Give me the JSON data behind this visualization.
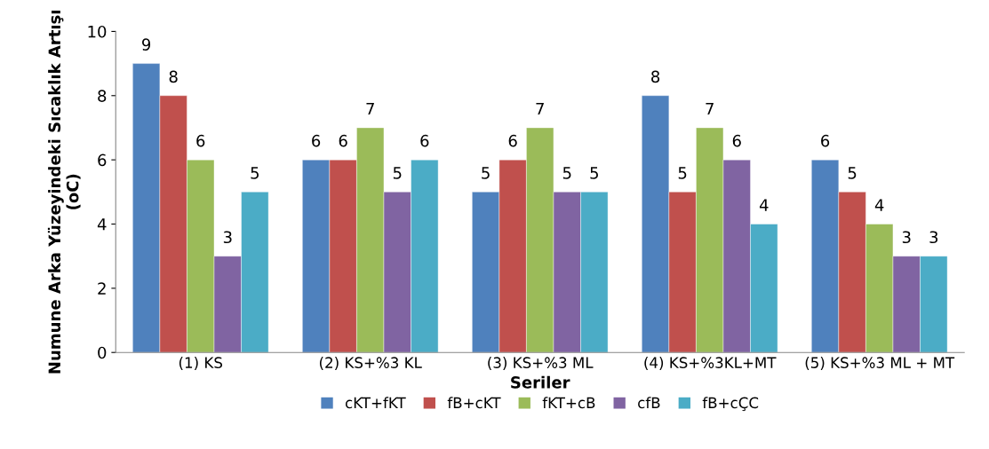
{
  "chart_data": {
    "type": "bar",
    "xlabel": "Seriler",
    "ylabel": "Numune Arka Yüzeyindeki Sıcaklık Artışı (oC)",
    "categories": [
      "(1) KS",
      "(2) KS+%3 KL",
      "(3) KS+%3 ML",
      "(4) KS+%3KL+MT",
      "(5) KS+%3 ML + MT"
    ],
    "series": [
      {
        "name": "cKT+fKT",
        "color": "#4f81bd",
        "values": [
          9,
          6,
          5,
          8,
          6
        ]
      },
      {
        "name": "fB+cKT",
        "color": "#c0504d",
        "values": [
          8,
          6,
          6,
          5,
          5
        ]
      },
      {
        "name": "fKT+cB",
        "color": "#9bbb59",
        "values": [
          6,
          7,
          7,
          7,
          4
        ]
      },
      {
        "name": "cfB",
        "color": "#8064a2",
        "values": [
          3,
          5,
          5,
          6,
          3
        ]
      },
      {
        "name": "fB+cÇC",
        "color": "#4bacc6",
        "values": [
          5,
          6,
          5,
          4,
          3
        ]
      }
    ],
    "ylim": [
      0,
      10
    ],
    "yticks": [
      0,
      2,
      4,
      6,
      8,
      10
    ],
    "grid": false,
    "legend": "bottom",
    "data_labels": true
  }
}
